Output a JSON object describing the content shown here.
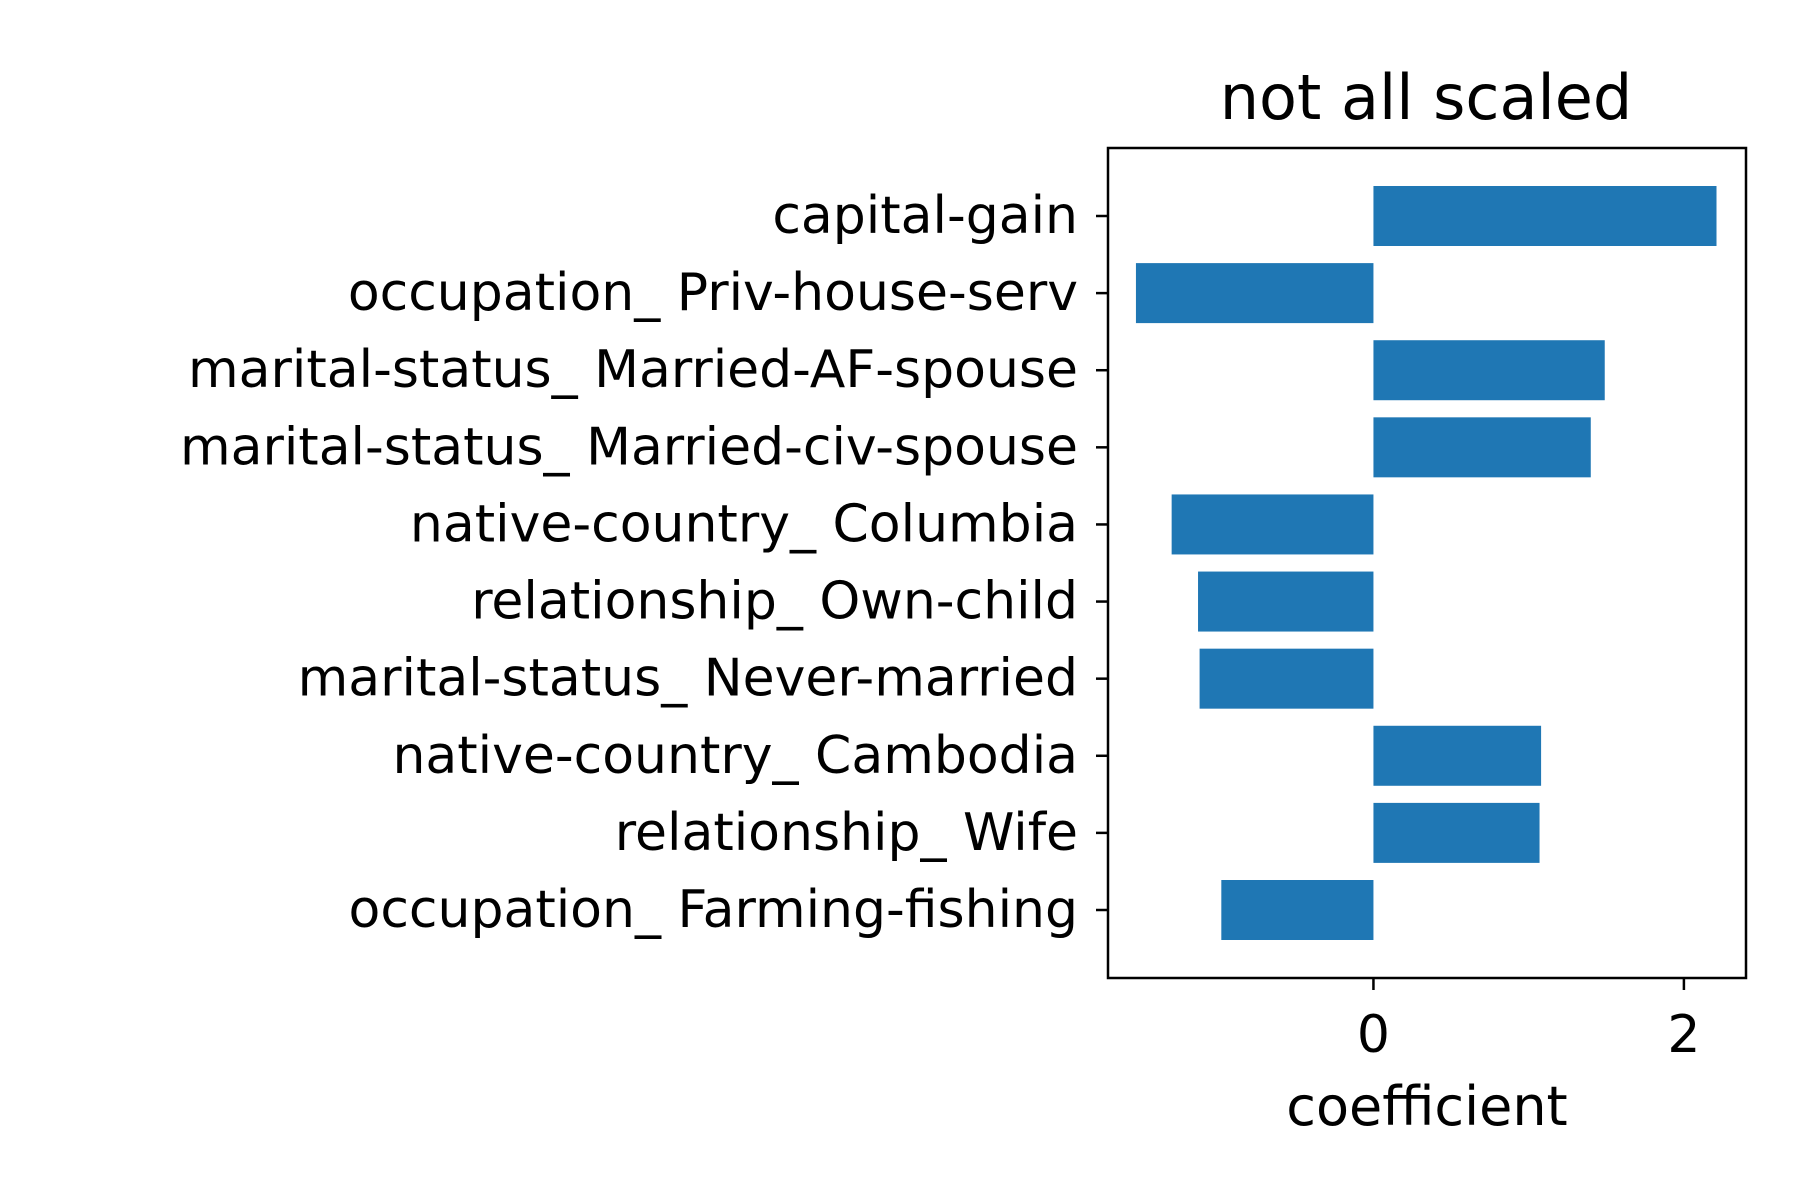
{
  "chart_data": {
    "type": "bar",
    "orientation": "horizontal",
    "title": "not all scaled",
    "xlabel": "coefficient",
    "ylabel": "",
    "categories": [
      "capital-gain",
      "occupation_ Priv-house-serv",
      "marital-status_ Married-AF-spouse",
      "marital-status_ Married-civ-spouse",
      "native-country_ Columbia",
      "relationship_ Own-child",
      "marital-status_ Never-married",
      "native-country_ Cambodia",
      "relationship_ Wife",
      "occupation_ Farming-fishing"
    ],
    "values": [
      2.21,
      -1.53,
      1.49,
      1.4,
      -1.3,
      -1.13,
      -1.12,
      1.08,
      1.07,
      -0.98
    ],
    "xlim": [
      -1.71,
      2.4
    ],
    "xticks": [
      0,
      2
    ],
    "xtick_labels": [
      "0",
      "2"
    ],
    "bar_color": "#1f77b4",
    "grid": false,
    "legend": "none"
  }
}
